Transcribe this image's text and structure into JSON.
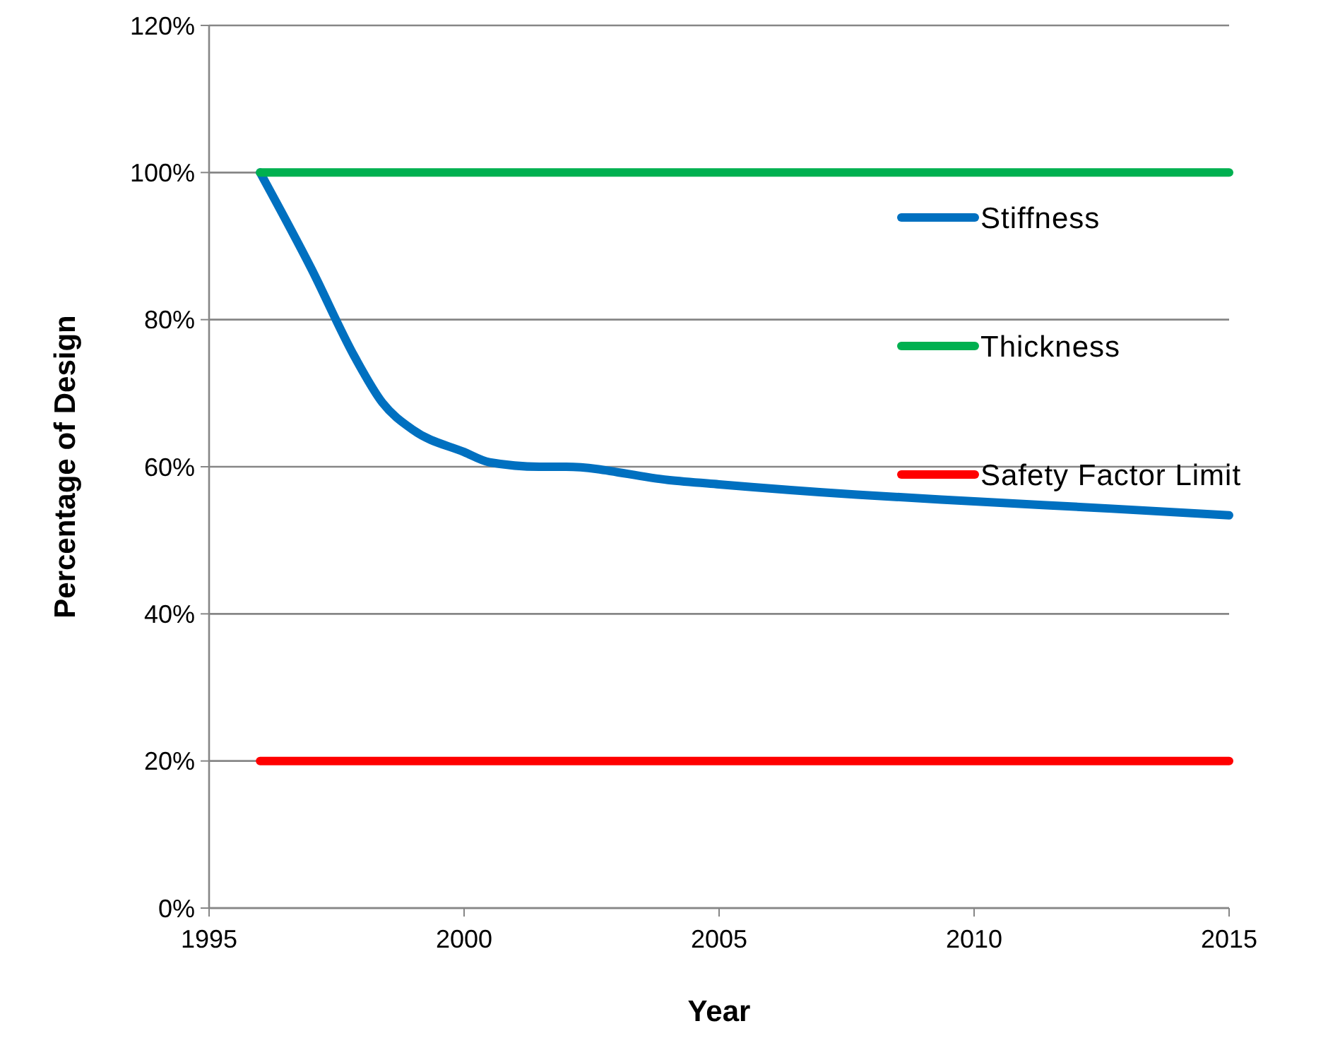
{
  "chart_data": {
    "type": "line",
    "xlabel": "Year",
    "ylabel": "Percentage of Design",
    "xlim": [
      1995,
      2015
    ],
    "xticks": [
      1995,
      2000,
      2005,
      2010,
      2015
    ],
    "ylim": [
      0,
      120
    ],
    "yticks": [
      {
        "value": 0,
        "label": "0%"
      },
      {
        "value": 20,
        "label": "20%"
      },
      {
        "value": 40,
        "label": "40%"
      },
      {
        "value": 60,
        "label": "60%"
      },
      {
        "value": 80,
        "label": "80%"
      },
      {
        "value": 100,
        "label": "100%"
      },
      {
        "value": 120,
        "label": "120%"
      }
    ],
    "grid": "y",
    "legend": "right",
    "marker": "none",
    "line_style": "solid",
    "series": [
      {
        "name": "Stiffness",
        "color": "#0070c0",
        "x": [
          1996,
          1997,
          1997.85,
          1998.4,
          1999,
          2000,
          2000.5,
          2001.5,
          2002,
          2004,
          2005,
          2007.7,
          2010,
          2012.7,
          2015
        ],
        "values": [
          100,
          87,
          75,
          68.7,
          65,
          62,
          60.6,
          60,
          60,
          58.2,
          57.6,
          56.2,
          55.3,
          54.3,
          53.4
        ]
      },
      {
        "name": "Thickness",
        "color": "#00b050",
        "x": [
          1996,
          2015
        ],
        "values": [
          100,
          100
        ]
      },
      {
        "name": "Safety Factor Limit",
        "color": "#ff0000",
        "x": [
          1996,
          2015
        ],
        "values": [
          20,
          20
        ]
      }
    ]
  }
}
